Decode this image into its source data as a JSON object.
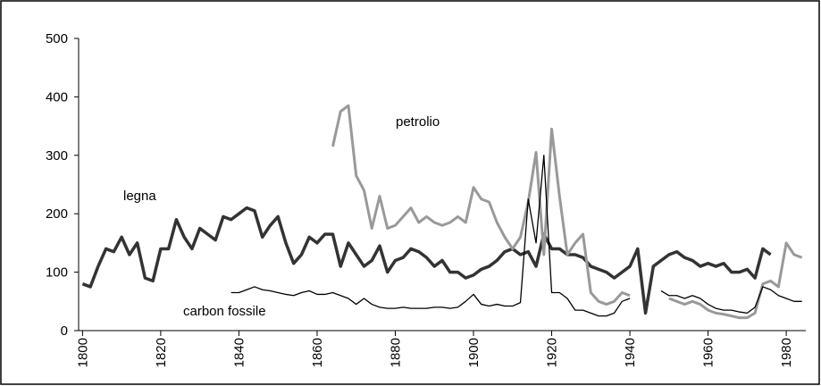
{
  "chart_data": {
    "type": "line",
    "x": [
      1800,
      1802,
      1804,
      1806,
      1808,
      1810,
      1812,
      1814,
      1816,
      1818,
      1820,
      1822,
      1824,
      1826,
      1828,
      1830,
      1832,
      1834,
      1836,
      1838,
      1840,
      1842,
      1844,
      1846,
      1848,
      1850,
      1852,
      1854,
      1856,
      1858,
      1860,
      1862,
      1864,
      1866,
      1868,
      1870,
      1872,
      1874,
      1876,
      1878,
      1880,
      1882,
      1884,
      1886,
      1888,
      1890,
      1892,
      1894,
      1896,
      1898,
      1900,
      1902,
      1904,
      1906,
      1908,
      1910,
      1912,
      1914,
      1916,
      1918,
      1920,
      1922,
      1924,
      1926,
      1928,
      1930,
      1932,
      1934,
      1936,
      1938,
      1940,
      1942,
      1944,
      1946,
      1948,
      1950,
      1952,
      1954,
      1956,
      1958,
      1960,
      1962,
      1964,
      1966,
      1968,
      1970,
      1972,
      1974,
      1976,
      1978,
      1980,
      1982,
      1984
    ],
    "series": [
      {
        "name": "legna",
        "color": "#333333",
        "values": [
          80,
          75,
          110,
          140,
          135,
          160,
          130,
          150,
          90,
          85,
          140,
          140,
          190,
          160,
          140,
          175,
          165,
          155,
          195,
          190,
          200,
          210,
          205,
          160,
          180,
          195,
          150,
          115,
          130,
          160,
          150,
          165,
          165,
          110,
          150,
          130,
          110,
          120,
          145,
          100,
          120,
          125,
          140,
          135,
          125,
          110,
          120,
          100,
          100,
          90,
          95,
          105,
          110,
          120,
          135,
          140,
          130,
          135,
          110,
          165,
          140,
          140,
          130,
          130,
          125,
          110,
          105,
          100,
          90,
          100,
          110,
          140,
          30,
          110,
          120,
          130,
          135,
          125,
          120,
          110,
          115,
          110,
          115,
          100,
          100,
          105,
          90,
          140,
          130,
          null,
          null,
          null,
          null
        ]
      },
      {
        "name": "petrolio",
        "color": "#999999",
        "values": [
          null,
          null,
          null,
          null,
          null,
          null,
          null,
          null,
          null,
          null,
          null,
          null,
          null,
          null,
          null,
          null,
          null,
          null,
          null,
          null,
          null,
          null,
          null,
          null,
          null,
          null,
          null,
          null,
          null,
          null,
          null,
          null,
          315,
          375,
          385,
          265,
          240,
          175,
          230,
          175,
          180,
          195,
          210,
          185,
          195,
          185,
          180,
          185,
          195,
          185,
          245,
          225,
          220,
          185,
          160,
          140,
          160,
          220,
          305,
          130,
          345,
          230,
          130,
          150,
          165,
          65,
          50,
          45,
          50,
          65,
          60,
          null,
          null,
          null,
          null,
          55,
          50,
          45,
          50,
          45,
          35,
          30,
          28,
          25,
          22,
          22,
          30,
          80,
          85,
          75,
          150,
          130,
          125
        ]
      },
      {
        "name": "carbon fossile",
        "color": "#000000",
        "values": [
          null,
          null,
          null,
          null,
          null,
          null,
          null,
          null,
          null,
          null,
          null,
          null,
          null,
          null,
          null,
          null,
          null,
          null,
          null,
          65,
          65,
          70,
          75,
          70,
          68,
          65,
          62,
          60,
          65,
          68,
          62,
          62,
          65,
          60,
          55,
          45,
          55,
          45,
          40,
          38,
          38,
          40,
          38,
          38,
          38,
          40,
          40,
          38,
          40,
          50,
          62,
          45,
          42,
          45,
          42,
          42,
          48,
          225,
          150,
          300,
          65,
          65,
          55,
          35,
          35,
          30,
          25,
          25,
          30,
          50,
          55,
          null,
          null,
          null,
          68,
          60,
          60,
          55,
          60,
          55,
          45,
          38,
          35,
          35,
          32,
          30,
          40,
          75,
          70,
          60,
          55,
          50,
          50
        ]
      }
    ],
    "xlim": [
      1799,
      1985
    ],
    "xticks": [
      1800,
      1820,
      1840,
      1860,
      1880,
      1900,
      1920,
      1940,
      1960,
      1980
    ],
    "ylim": [
      0,
      500
    ],
    "yticks": [
      0,
      100,
      200,
      300,
      400,
      500
    ]
  }
}
